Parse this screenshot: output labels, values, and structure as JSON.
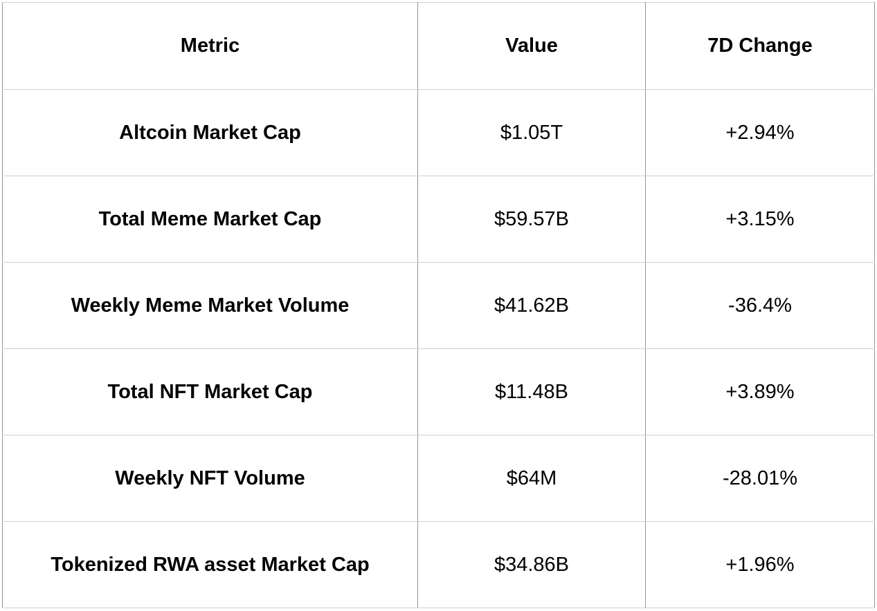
{
  "chart_data": {
    "type": "table",
    "title": "",
    "columns": [
      "Metric",
      "Value",
      "7D Change"
    ],
    "rows": [
      [
        "Altcoin Market Cap",
        "$1.05T",
        "+2.94%"
      ],
      [
        "Total Meme Market Cap",
        "$59.57B",
        "+3.15%"
      ],
      [
        "Weekly Meme Market Volume",
        "$41.62B",
        "-36.4%"
      ],
      [
        "Total NFT Market Cap",
        "$11.48B",
        "+3.89%"
      ],
      [
        "Weekly NFT Volume",
        "$64M",
        "-28.01%"
      ],
      [
        "Tokenized RWA asset Market Cap",
        "$34.86B",
        "+1.96%"
      ]
    ],
    "layout": {
      "header_bold": true,
      "metric_column_bold": true,
      "text_align": "center",
      "grid": true
    }
  },
  "colors": {
    "background": "#ffffff",
    "text": "#000000",
    "vertical_border": "#949494",
    "horizontal_border": "#d0d0d0"
  }
}
